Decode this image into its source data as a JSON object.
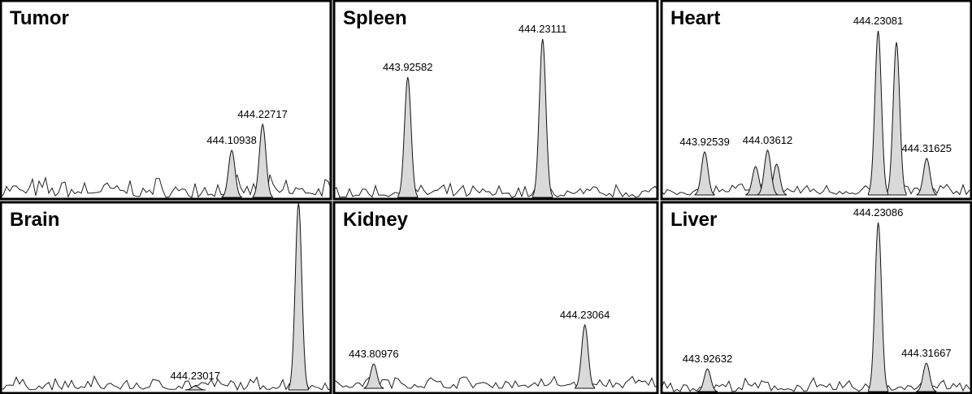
{
  "chart_data": [
    {
      "type": "spectrum",
      "title": "Tumor",
      "xlim": [
        443.226,
        444.49
      ],
      "ylim": [
        0,
        230
      ],
      "x": [
        444.10938,
        444.22717
      ],
      "values": [
        58,
        90
      ],
      "other_x": [],
      "other_values": []
    },
    {
      "type": "spectrum",
      "title": "Spleen",
      "xlim": [
        443.757,
        444.493
      ],
      "ylim": [
        0,
        230
      ],
      "x": [
        443.92582,
        444.23111
      ],
      "values": [
        148,
        195
      ],
      "other_x": [],
      "other_values": []
    },
    {
      "type": "spectrum",
      "title": "Heart",
      "xlim": [
        443.848,
        444.396
      ],
      "ylim": [
        0,
        230
      ],
      "x": [
        443.92539,
        444.03612,
        444.23081,
        444.31625
      ],
      "values": [
        53,
        55,
        202,
        45
      ],
      "other_x": [
        444.263,
        444.015,
        444.052
      ],
      "other_values": [
        188,
        35,
        38
      ]
    },
    {
      "type": "spectrum",
      "title": "Brain",
      "xlim": [
        443.486,
        444.75
      ],
      "ylim": [
        0,
        230
      ],
      "x": [
        444.23017
      ],
      "values": [
        5
      ],
      "other_x": [
        444.624
      ],
      "other_values": [
        230
      ]
    },
    {
      "type": "spectrum",
      "title": "Kidney",
      "xlim": [
        443.729,
        444.377
      ],
      "ylim": [
        0,
        230
      ],
      "x": [
        443.80976,
        444.23064
      ],
      "values": [
        30,
        78
      ],
      "other_x": [],
      "other_values": []
    },
    {
      "type": "spectrum",
      "title": "Liver",
      "xlim": [
        443.843,
        444.398
      ],
      "ylim": [
        0,
        230
      ],
      "x": [
        443.92632,
        444.23086,
        444.31667
      ],
      "values": [
        28,
        208,
        35
      ],
      "other_x": [],
      "other_values": []
    }
  ]
}
